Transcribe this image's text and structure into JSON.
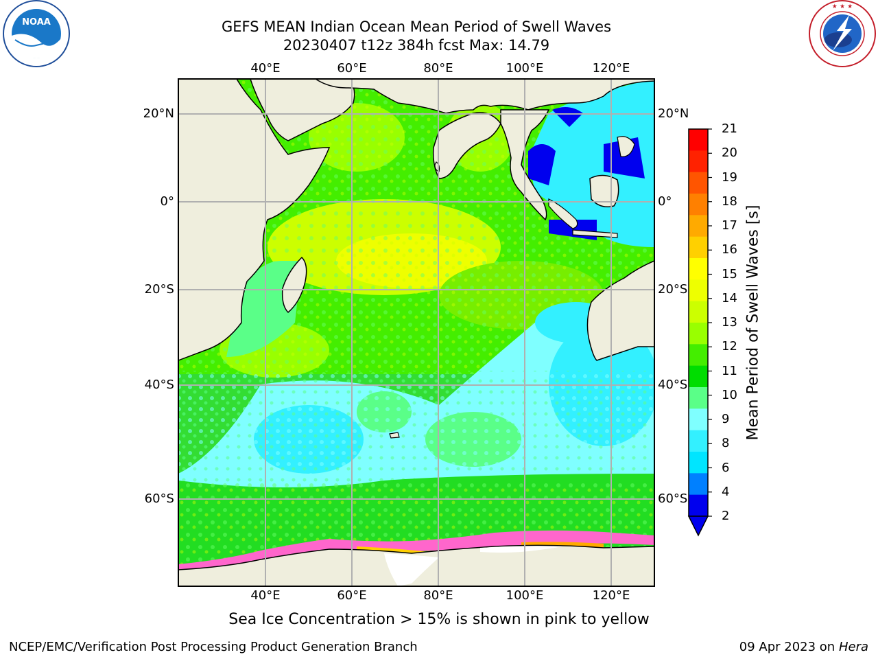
{
  "header": {
    "title_line1": "GEFS MEAN Indian Ocean Mean Period of Swell Waves",
    "title_line2": "20230407 t12z 384h fcst   Max: 14.79"
  },
  "logos": {
    "left": "NOAA",
    "left_ring_text": "NATIONAL OCEANIC AND ATMOSPHERIC ADMINISTRATION · U.S. DEPARTMENT OF COMMERCE",
    "right_ring_text": "NATIONAL WEATHER SERVICE"
  },
  "map": {
    "lon_labels": [
      "40°E",
      "60°E",
      "80°E",
      "100°E",
      "120°E"
    ],
    "lat_labels": [
      "20°N",
      "0°",
      "20°S",
      "40°S",
      "60°S"
    ],
    "lon_range": [
      20,
      130
    ],
    "lat_range": [
      -70,
      28
    ],
    "caption": "Sea Ice Concentration > 15% is shown in pink to yellow"
  },
  "colorbar": {
    "title": "Mean Period of Swell Waves [s]",
    "ticks": [
      "21",
      "20",
      "19",
      "18",
      "17",
      "16",
      "15",
      "14",
      "13",
      "12",
      "11",
      "10",
      "9",
      "8",
      "6",
      "4",
      "2"
    ],
    "colors_bottom_to_top": [
      "#0000ee",
      "#0080ff",
      "#00e5ff",
      "#33f0ff",
      "#7fffff",
      "#5aff88",
      "#00dd00",
      "#44ee00",
      "#99ff00",
      "#ccff00",
      "#eeff00",
      "#ffff00",
      "#ffd000",
      "#ffaa00",
      "#ff8000",
      "#ff5500",
      "#ff2200",
      "#ff0000"
    ],
    "extend_arrow_color": "#0000ee"
  },
  "footer": {
    "left": "NCEP/EMC/Verification Post Processing Product Generation Branch",
    "date": "09 Apr 2023 on ",
    "machine": "Hera"
  },
  "colors": {
    "land": "#efeedd",
    "grid": "#b0b0b0",
    "ice": "#ff66cc"
  }
}
